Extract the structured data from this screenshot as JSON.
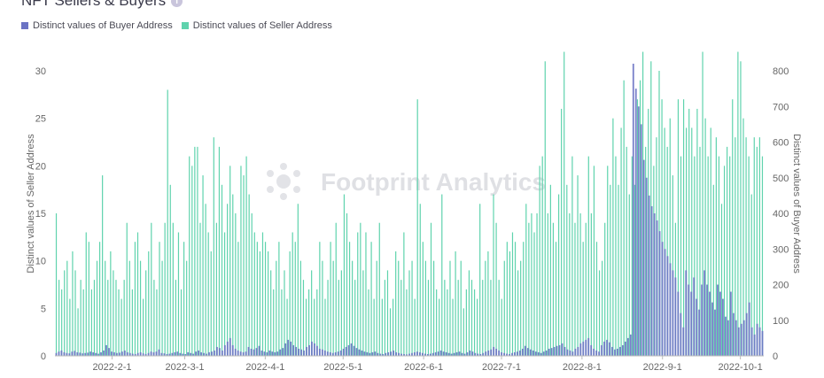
{
  "header": {
    "title": "NFT Sellers & Buyers"
  },
  "watermark": "Footprint Analytics",
  "colors": {
    "buyer": "#6b73c4",
    "seller": "#5fd3ad"
  },
  "chart_data": {
    "type": "bar",
    "legend_position": "top-left",
    "grid": false,
    "x_start": "2022-01-10",
    "x_end": "2022-10-10",
    "x_tick_labels": [
      "2022-2-1",
      "2022-3-1",
      "2022-4-1",
      "2022-5-1",
      "2022-6-1",
      "2022-7-1",
      "2022-8-1",
      "2022-9-1",
      "2022-10-1"
    ],
    "left_axis": {
      "label": "Distinct values of Seller Address",
      "range": [
        0,
        30
      ],
      "ticks": [
        0,
        5,
        10,
        15,
        20,
        25,
        30
      ]
    },
    "right_axis": {
      "label": "Distinct values of Buyer Address",
      "range": [
        0,
        800
      ],
      "ticks": [
        0,
        100,
        200,
        300,
        400,
        500,
        600,
        700,
        800
      ]
    },
    "series": [
      {
        "name": "Distinct values of Buyer Address",
        "axis": "right",
        "values": [
          8,
          12,
          15,
          10,
          8,
          7,
          12,
          14,
          10,
          9,
          7,
          8,
          9,
          12,
          10,
          8,
          6,
          10,
          15,
          30,
          22,
          12,
          10,
          8,
          9,
          12,
          15,
          10,
          8,
          6,
          5,
          8,
          10,
          7,
          5,
          8,
          12,
          10,
          12,
          18,
          8,
          7,
          5,
          6,
          8,
          10,
          12,
          8,
          6,
          5,
          10,
          8,
          6,
          12,
          15,
          10,
          8,
          6,
          10,
          12,
          15,
          25,
          22,
          15,
          30,
          40,
          50,
          30,
          20,
          15,
          12,
          10,
          12,
          25,
          20,
          18,
          22,
          28,
          15,
          12,
          10,
          15,
          12,
          10,
          12,
          18,
          22,
          35,
          45,
          40,
          30,
          25,
          20,
          18,
          15,
          25,
          30,
          40,
          35,
          28,
          20,
          18,
          15,
          12,
          10,
          8,
          10,
          12,
          15,
          20,
          25,
          30,
          35,
          28,
          22,
          18,
          15,
          12,
          10,
          8,
          10,
          12,
          8,
          6,
          5,
          8,
          10,
          12,
          15,
          10,
          8,
          6,
          5,
          4,
          6,
          8,
          10,
          12,
          10,
          8,
          6,
          5,
          6,
          8,
          10,
          12,
          15,
          12,
          10,
          8,
          6,
          8,
          10,
          12,
          8,
          6,
          10,
          15,
          12,
          8,
          6,
          5,
          8,
          12,
          15,
          18,
          25,
          20,
          15,
          10,
          8,
          6,
          5,
          8,
          10,
          12,
          15,
          20,
          28,
          22,
          18,
          15,
          12,
          10,
          8,
          12,
          15,
          20,
          22,
          25,
          28,
          30,
          35,
          25,
          18,
          15,
          12,
          20,
          25,
          35,
          40,
          45,
          50,
          30,
          20,
          15,
          12,
          30,
          40,
          45,
          38,
          25,
          18,
          20,
          25,
          30,
          40,
          50,
          60,
          820,
          750,
          700,
          650,
          550,
          500,
          450,
          420,
          400,
          380,
          350,
          320,
          300,
          280,
          260,
          240,
          220,
          180,
          120,
          80,
          240,
          200,
          180,
          220,
          160,
          130,
          200,
          240,
          200,
          180,
          150,
          130,
          200,
          180,
          160,
          110,
          100,
          180,
          120,
          100,
          80,
          90,
          100,
          120,
          150,
          80,
          60,
          90,
          80,
          70
        ]
      },
      {
        "name": "Distinct values of Seller Address",
        "axis": "left",
        "values": [
          15,
          8,
          7,
          9,
          10,
          6,
          11,
          9,
          5,
          8,
          7,
          13,
          12,
          7,
          8,
          10,
          12,
          19,
          10,
          8,
          11,
          9,
          8,
          7,
          6,
          8,
          14,
          10,
          7,
          12,
          13,
          10,
          6,
          9,
          11,
          14,
          8,
          7,
          12,
          10,
          14,
          28,
          18,
          14,
          8,
          13,
          7,
          12,
          10,
          21,
          20,
          22,
          22,
          14,
          19,
          16,
          13,
          11,
          23,
          14,
          22,
          18,
          13,
          16,
          20,
          17,
          15,
          12,
          20,
          19,
          21,
          17,
          15,
          13,
          12,
          11,
          13,
          12,
          11,
          9,
          7,
          10,
          12,
          7,
          9,
          6,
          11,
          13,
          12,
          16,
          10,
          8,
          6,
          7,
          9,
          6,
          7,
          12,
          10,
          6,
          8,
          12,
          10,
          14,
          8,
          9,
          17,
          15,
          12,
          10,
          8,
          13,
          14,
          9,
          13,
          7,
          12,
          6,
          10,
          14,
          6,
          8,
          9,
          5,
          6,
          11,
          10,
          8,
          13,
          7,
          9,
          10,
          6,
          27,
          16,
          12,
          10,
          8,
          14,
          10,
          7,
          6,
          17,
          8,
          7,
          10,
          6,
          11,
          8,
          10,
          5,
          7,
          9,
          8,
          7,
          6,
          16,
          8,
          10,
          11,
          8,
          17,
          14,
          8,
          6,
          10,
          12,
          11,
          13,
          12,
          9,
          10,
          12,
          16,
          14,
          15,
          13,
          15,
          20,
          21,
          31,
          15,
          18,
          14,
          12,
          17,
          26,
          32,
          18,
          15,
          21,
          14,
          19,
          15,
          12,
          14,
          21,
          15,
          20,
          12,
          9,
          10,
          14,
          20,
          18,
          25,
          21,
          18,
          24,
          29,
          22,
          17,
          21,
          18,
          27,
          29,
          32,
          22,
          26,
          31,
          20,
          23,
          30,
          27,
          24,
          22,
          25,
          19,
          14,
          27,
          21,
          27,
          24,
          26,
          24,
          21,
          26,
          22,
          32,
          25,
          21,
          24,
          18,
          23,
          21,
          16,
          20,
          22,
          21,
          27,
          23,
          32,
          31,
          25,
          23,
          21,
          17,
          23,
          22,
          23,
          21
        ]
      }
    ]
  }
}
